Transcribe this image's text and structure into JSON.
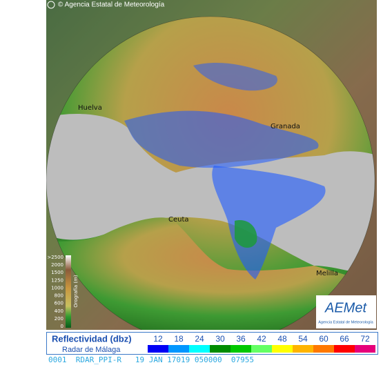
{
  "header": {
    "credit": "© Agencia Estatal de Meteorología"
  },
  "cities": [
    "Huelva",
    "Granada",
    "Ceuta",
    "Melilla"
  ],
  "orography": {
    "title": "Orografía (m)",
    "levels": [
      ">2500",
      2000,
      1500,
      1250,
      1000,
      800,
      600,
      400,
      200,
      0
    ]
  },
  "logo": {
    "name": "AEMet",
    "subtitle": "Agencia Estatal de Meteorología"
  },
  "legend": {
    "title": "Reflectividad (dbz)",
    "radar": "Radar de Málaga",
    "scale": [
      12,
      18,
      24,
      30,
      36,
      42,
      48,
      54,
      60,
      66,
      72
    ],
    "colors": [
      "#0000f5",
      "#0096ff",
      "#00ffff",
      "#008c00",
      "#00c800",
      "#64ff64",
      "#ffff00",
      "#ffb400",
      "#ff7800",
      "#ff0000",
      "#e6007a"
    ]
  },
  "status": "0001  RDAR_PPI-R   19 JAN 17019 050000  07955"
}
